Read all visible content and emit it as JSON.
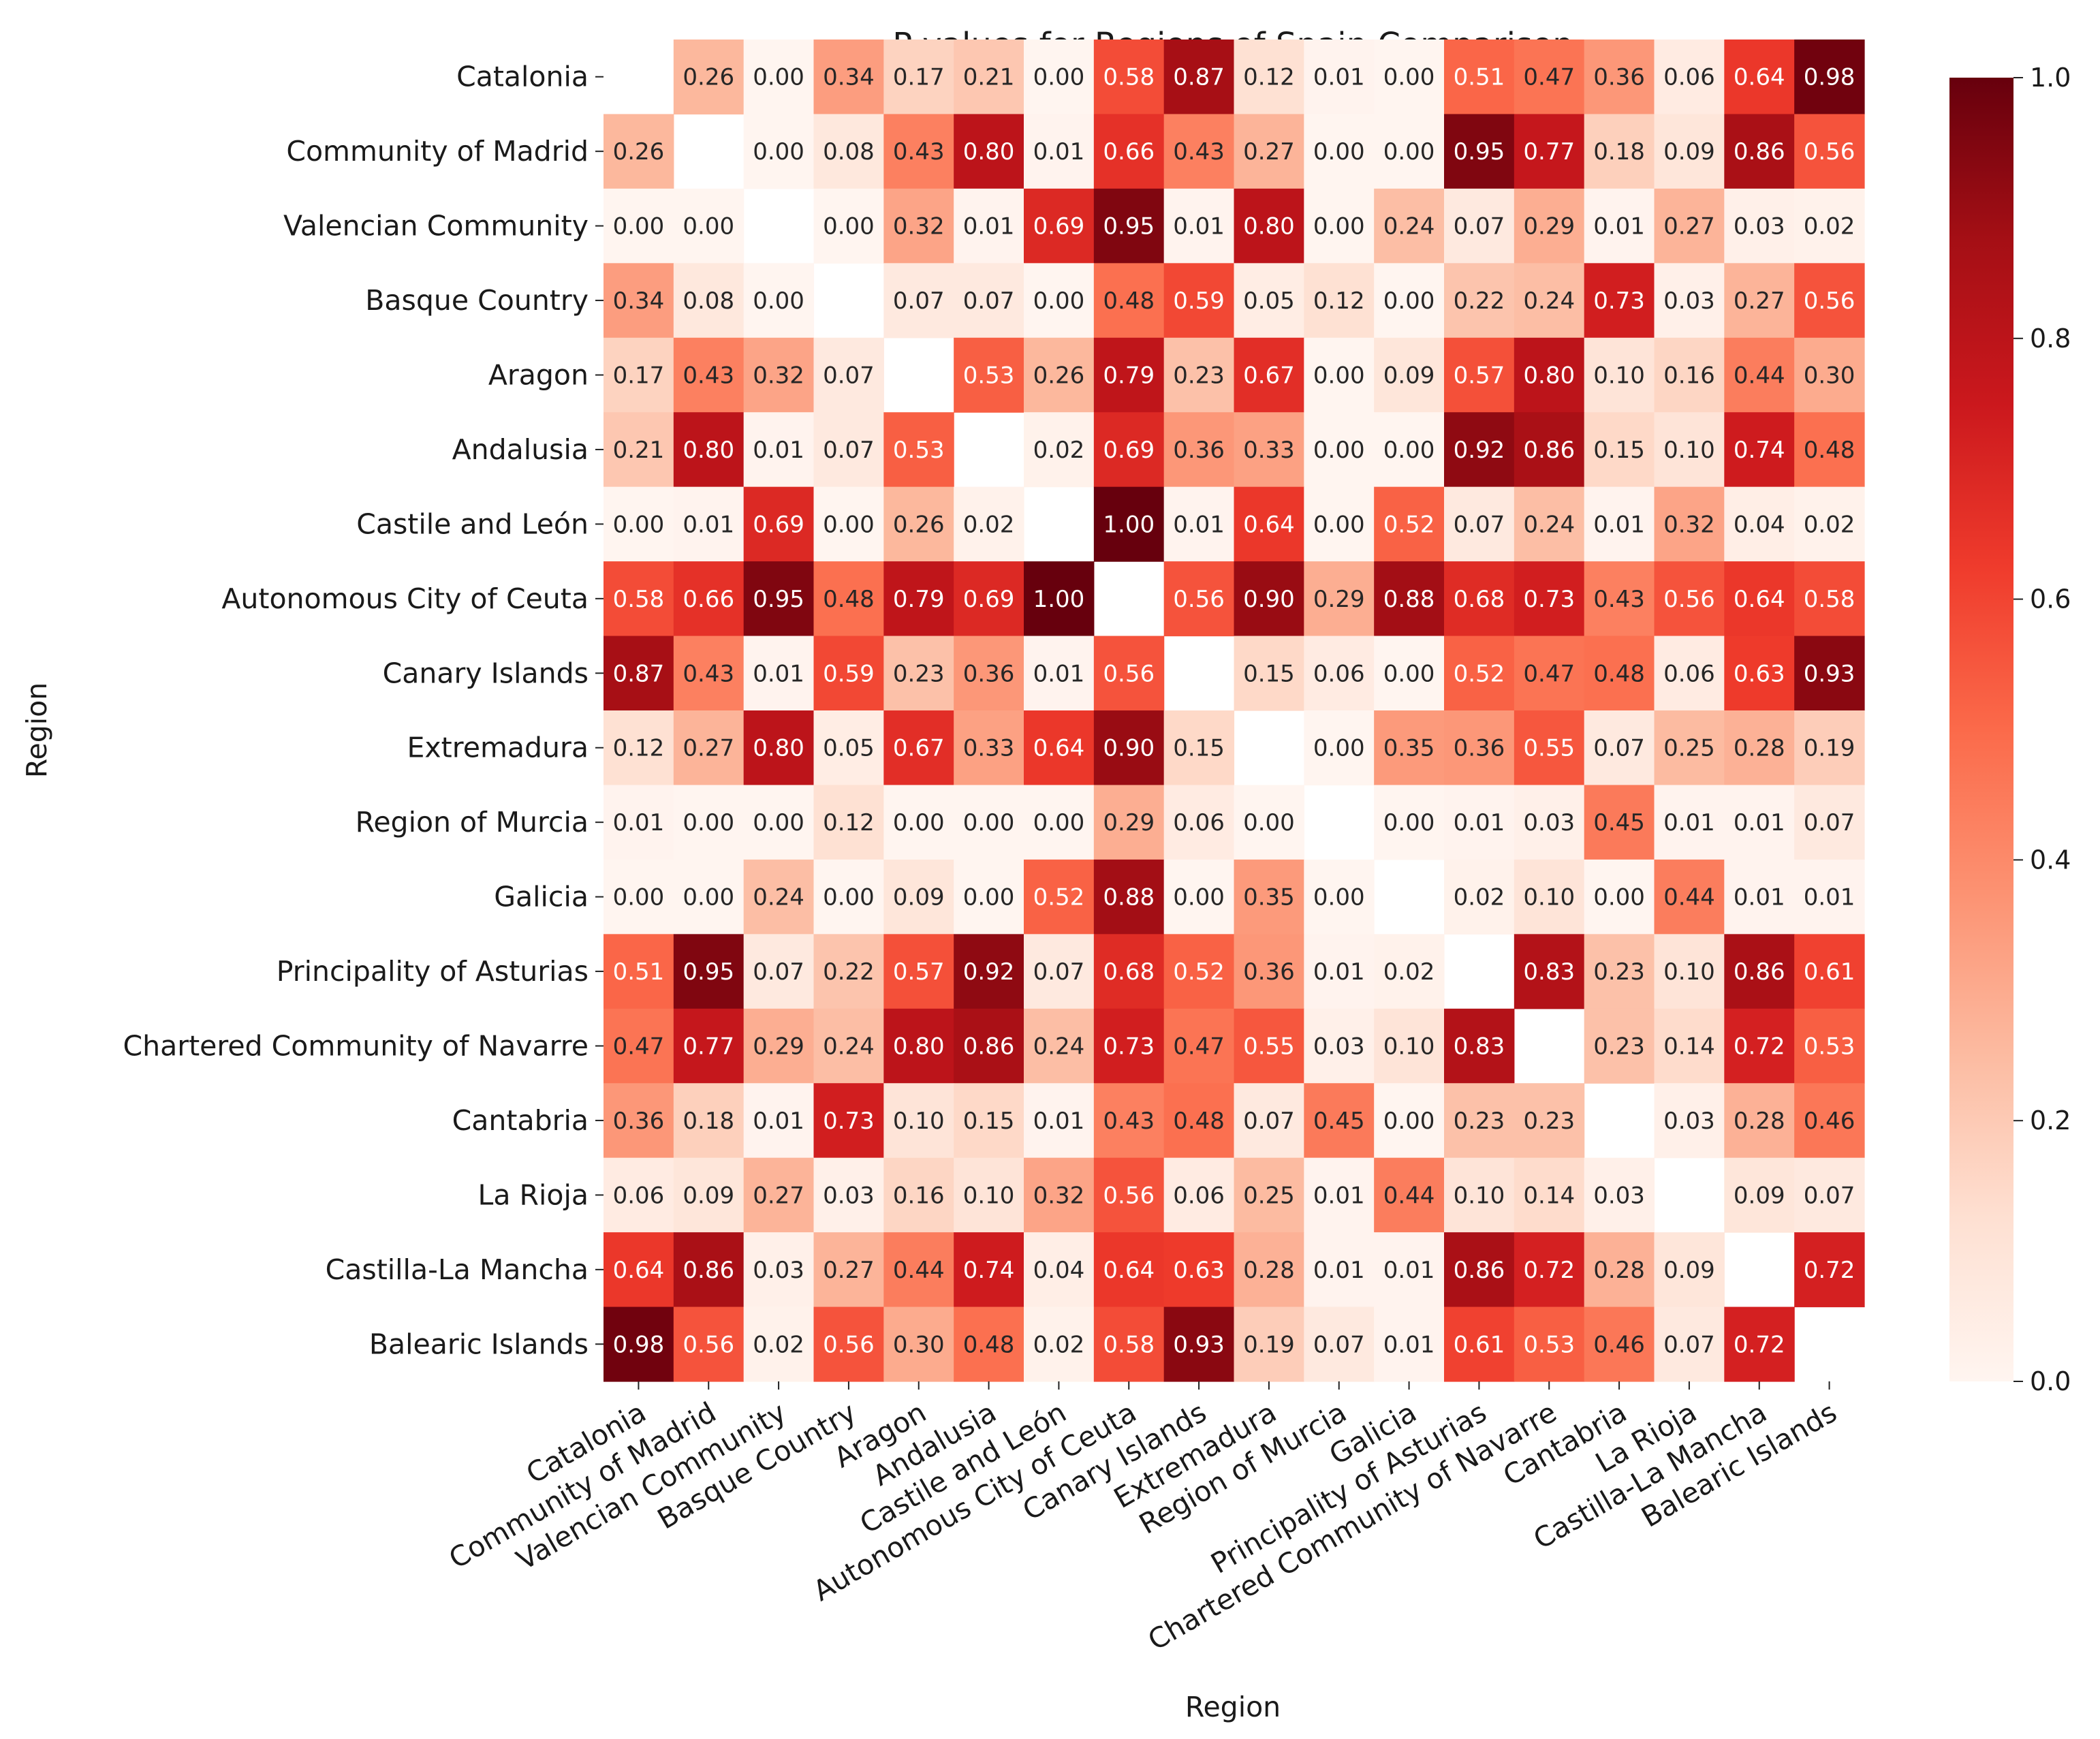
{
  "chart_data": {
    "type": "heatmap",
    "title": "P-values for Regions of Spain Comparison",
    "xlabel": "Region",
    "ylabel": "Region",
    "categories": [
      "Catalonia",
      "Community of Madrid",
      "Valencian Community",
      "Basque Country",
      "Aragon",
      "Andalusia",
      "Castile and León",
      "Autonomous City of Ceuta",
      "Canary Islands",
      "Extremadura",
      "Region of Murcia",
      "Galicia",
      "Principality of Asturias",
      "Chartered Community of Navarre",
      "Cantabria",
      "La Rioja",
      "Castilla-La Mancha",
      "Balearic Islands"
    ],
    "matrix": [
      [
        null,
        0.26,
        0.0,
        0.34,
        0.17,
        0.21,
        0.0,
        0.58,
        0.87,
        0.12,
        0.01,
        0.0,
        0.51,
        0.47,
        0.36,
        0.06,
        0.64,
        0.98
      ],
      [
        0.26,
        null,
        0.0,
        0.08,
        0.43,
        0.8,
        0.01,
        0.66,
        0.43,
        0.27,
        0.0,
        0.0,
        0.95,
        0.77,
        0.18,
        0.09,
        0.86,
        0.56
      ],
      [
        0.0,
        0.0,
        null,
        0.0,
        0.32,
        0.01,
        0.69,
        0.95,
        0.01,
        0.8,
        0.0,
        0.24,
        0.07,
        0.29,
        0.01,
        0.27,
        0.03,
        0.02
      ],
      [
        0.34,
        0.08,
        0.0,
        null,
        0.07,
        0.07,
        0.0,
        0.48,
        0.59,
        0.05,
        0.12,
        0.0,
        0.22,
        0.24,
        0.73,
        0.03,
        0.27,
        0.56
      ],
      [
        0.17,
        0.43,
        0.32,
        0.07,
        null,
        0.53,
        0.26,
        0.79,
        0.23,
        0.67,
        0.0,
        0.09,
        0.57,
        0.8,
        0.1,
        0.16,
        0.44,
        0.3
      ],
      [
        0.21,
        0.8,
        0.01,
        0.07,
        0.53,
        null,
        0.02,
        0.69,
        0.36,
        0.33,
        0.0,
        0.0,
        0.92,
        0.86,
        0.15,
        0.1,
        0.74,
        0.48
      ],
      [
        0.0,
        0.01,
        0.69,
        0.0,
        0.26,
        0.02,
        null,
        1.0,
        0.01,
        0.64,
        0.0,
        0.52,
        0.07,
        0.24,
        0.01,
        0.32,
        0.04,
        0.02
      ],
      [
        0.58,
        0.66,
        0.95,
        0.48,
        0.79,
        0.69,
        1.0,
        null,
        0.56,
        0.9,
        0.29,
        0.88,
        0.68,
        0.73,
        0.43,
        0.56,
        0.64,
        0.58
      ],
      [
        0.87,
        0.43,
        0.01,
        0.59,
        0.23,
        0.36,
        0.01,
        0.56,
        null,
        0.15,
        0.06,
        0.0,
        0.52,
        0.47,
        0.48,
        0.06,
        0.63,
        0.93
      ],
      [
        0.12,
        0.27,
        0.8,
        0.05,
        0.67,
        0.33,
        0.64,
        0.9,
        0.15,
        null,
        0.0,
        0.35,
        0.36,
        0.55,
        0.07,
        0.25,
        0.28,
        0.19
      ],
      [
        0.01,
        0.0,
        0.0,
        0.12,
        0.0,
        0.0,
        0.0,
        0.29,
        0.06,
        0.0,
        null,
        0.0,
        0.01,
        0.03,
        0.45,
        0.01,
        0.01,
        0.07
      ],
      [
        0.0,
        0.0,
        0.24,
        0.0,
        0.09,
        0.0,
        0.52,
        0.88,
        0.0,
        0.35,
        0.0,
        null,
        0.02,
        0.1,
        0.0,
        0.44,
        0.01,
        0.01
      ],
      [
        0.51,
        0.95,
        0.07,
        0.22,
        0.57,
        0.92,
        0.07,
        0.68,
        0.52,
        0.36,
        0.01,
        0.02,
        null,
        0.83,
        0.23,
        0.1,
        0.86,
        0.61
      ],
      [
        0.47,
        0.77,
        0.29,
        0.24,
        0.8,
        0.86,
        0.24,
        0.73,
        0.47,
        0.55,
        0.03,
        0.1,
        0.83,
        null,
        0.23,
        0.14,
        0.72,
        0.53
      ],
      [
        0.36,
        0.18,
        0.01,
        0.73,
        0.1,
        0.15,
        0.01,
        0.43,
        0.48,
        0.07,
        0.45,
        0.0,
        0.23,
        0.23,
        null,
        0.03,
        0.28,
        0.46
      ],
      [
        0.06,
        0.09,
        0.27,
        0.03,
        0.16,
        0.1,
        0.32,
        0.56,
        0.06,
        0.25,
        0.01,
        0.44,
        0.1,
        0.14,
        0.03,
        null,
        0.09,
        0.07
      ],
      [
        0.64,
        0.86,
        0.03,
        0.27,
        0.44,
        0.74,
        0.04,
        0.64,
        0.63,
        0.28,
        0.01,
        0.01,
        0.86,
        0.72,
        0.28,
        0.09,
        null,
        0.72
      ],
      [
        0.98,
        0.56,
        0.02,
        0.56,
        0.3,
        0.48,
        0.02,
        0.58,
        0.93,
        0.19,
        0.07,
        0.01,
        0.61,
        0.53,
        0.46,
        0.07,
        0.72,
        null
      ]
    ],
    "colorbar": {
      "range": [
        0,
        1
      ],
      "ticks": [
        0.0,
        0.2,
        0.4,
        0.6,
        0.8,
        1.0
      ],
      "tick_labels": [
        "0.0",
        "0.2",
        "0.4",
        "0.6",
        "0.8",
        "1.0"
      ],
      "colormap": "Reds",
      "stops": [
        "#fff5f0",
        "#fee0d2",
        "#fcbba1",
        "#fc9272",
        "#fb6a4a",
        "#ef3b2c",
        "#cb181d",
        "#a50f15",
        "#67000d"
      ]
    }
  }
}
